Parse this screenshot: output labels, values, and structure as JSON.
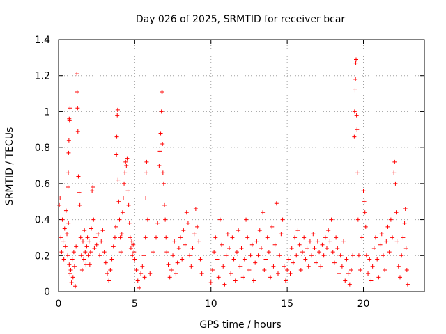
{
  "chart_data": {
    "type": "scatter",
    "title": "Day 026 of 2025, SRMTID for receiver bcar",
    "xlabel": "GPS time / hours",
    "ylabel": "SRMTID / TECUs",
    "xlim": [
      0,
      24
    ],
    "ylim": [
      0,
      1.4
    ],
    "xticks": [
      0,
      5,
      10,
      15,
      20
    ],
    "yticks": [
      0,
      0.2,
      0.4,
      0.6,
      0.8,
      1,
      1.2,
      1.4
    ],
    "xtick_labels": [
      "0",
      "5",
      "10",
      "15",
      "20"
    ],
    "ytick_labels": [
      "0",
      "0.2",
      "0.4",
      "0.6",
      "0.8",
      "1",
      "1.2",
      "1.4"
    ],
    "grid": true,
    "marker": "+",
    "color": "#ff0000",
    "series": [
      {
        "name": "SRMTID",
        "points": [
          [
            0.05,
            0.48
          ],
          [
            0.1,
            0.52
          ],
          [
            0.15,
            0.3
          ],
          [
            0.2,
            0.22
          ],
          [
            0.25,
            0.4
          ],
          [
            0.3,
            0.28
          ],
          [
            0.35,
            0.18
          ],
          [
            0.4,
            0.35
          ],
          [
            0.45,
            0.25
          ],
          [
            0.5,
            0.45
          ],
          [
            0.55,
            0.32
          ],
          [
            0.6,
            0.2
          ],
          [
            0.65,
            0.38
          ],
          [
            0.7,
            0.15
          ],
          [
            0.75,
            0.1
          ],
          [
            0.7,
            0.96
          ],
          [
            0.72,
            0.95
          ],
          [
            0.75,
            1.02
          ],
          [
            0.68,
            0.84
          ],
          [
            0.66,
            0.77
          ],
          [
            0.64,
            0.66
          ],
          [
            0.62,
            0.58
          ],
          [
            0.8,
            0.12
          ],
          [
            0.85,
            0.05
          ],
          [
            0.9,
            0.18
          ],
          [
            0.95,
            0.08
          ],
          [
            1.0,
            0.22
          ],
          [
            1.05,
            0.14
          ],
          [
            1.1,
            0.03
          ],
          [
            1.15,
            0.25
          ],
          [
            1.2,
            1.21
          ],
          [
            1.22,
            1.11
          ],
          [
            1.25,
            1.02
          ],
          [
            1.27,
            0.89
          ],
          [
            1.3,
            0.64
          ],
          [
            1.35,
            0.55
          ],
          [
            1.4,
            0.48
          ],
          [
            1.45,
            0.3
          ],
          [
            1.5,
            0.2
          ],
          [
            1.55,
            0.12
          ],
          [
            1.6,
            0.28
          ],
          [
            1.65,
            0.18
          ],
          [
            1.7,
            0.34
          ],
          [
            1.75,
            0.22
          ],
          [
            1.8,
            0.15
          ],
          [
            1.85,
            0.25
          ],
          [
            1.9,
            0.3
          ],
          [
            1.95,
            0.2
          ],
          [
            2.0,
            0.28
          ],
          [
            2.05,
            0.15
          ],
          [
            2.1,
            0.22
          ],
          [
            2.15,
            0.35
          ],
          [
            2.2,
            0.56
          ],
          [
            2.25,
            0.58
          ],
          [
            2.3,
            0.4
          ],
          [
            2.35,
            0.24
          ],
          [
            2.4,
            0.3
          ],
          [
            2.5,
            0.26
          ],
          [
            2.6,
            0.32
          ],
          [
            2.7,
            0.2
          ],
          [
            2.8,
            0.28
          ],
          [
            2.9,
            0.34
          ],
          [
            3.0,
            0.22
          ],
          [
            3.1,
            0.16
          ],
          [
            3.2,
            0.1
          ],
          [
            3.3,
            0.06
          ],
          [
            3.4,
            0.12
          ],
          [
            3.5,
            0.18
          ],
          [
            3.6,
            0.25
          ],
          [
            3.7,
            0.3
          ],
          [
            3.75,
            0.36
          ],
          [
            3.8,
            0.76
          ],
          [
            3.82,
            0.86
          ],
          [
            3.85,
            0.98
          ],
          [
            3.88,
            1.01
          ],
          [
            3.9,
            0.62
          ],
          [
            3.95,
            0.5
          ],
          [
            4.0,
            0.4
          ],
          [
            4.05,
            0.3
          ],
          [
            4.1,
            0.22
          ],
          [
            4.15,
            0.32
          ],
          [
            4.2,
            0.44
          ],
          [
            4.25,
            0.52
          ],
          [
            4.3,
            0.6
          ],
          [
            4.35,
            0.66
          ],
          [
            4.4,
            0.72
          ],
          [
            4.45,
            0.7
          ],
          [
            4.5,
            0.74
          ],
          [
            4.55,
            0.56
          ],
          [
            4.6,
            0.48
          ],
          [
            4.65,
            0.38
          ],
          [
            4.7,
            0.3
          ],
          [
            4.75,
            0.24
          ],
          [
            4.8,
            0.28
          ],
          [
            4.85,
            0.2
          ],
          [
            4.9,
            0.26
          ],
          [
            4.95,
            0.22
          ],
          [
            5.0,
            0.18
          ],
          [
            5.1,
            0.12
          ],
          [
            5.2,
            0.06
          ],
          [
            5.3,
            0.02
          ],
          [
            5.4,
            0.1
          ],
          [
            5.5,
            0.14
          ],
          [
            5.6,
            0.2
          ],
          [
            5.65,
            0.08
          ],
          [
            5.7,
            0.3
          ],
          [
            5.72,
            0.52
          ],
          [
            5.75,
            0.66
          ],
          [
            5.78,
            0.72
          ],
          [
            5.85,
            0.4
          ],
          [
            6.0,
            0.1
          ],
          [
            6.2,
            0.22
          ],
          [
            6.4,
            0.3
          ],
          [
            6.5,
            0.38
          ],
          [
            6.6,
            0.7
          ],
          [
            6.65,
            0.78
          ],
          [
            6.7,
            0.88
          ],
          [
            6.75,
            1.0
          ],
          [
            6.78,
            1.11
          ],
          [
            6.8,
            1.11
          ],
          [
            6.82,
            0.82
          ],
          [
            6.85,
            0.66
          ],
          [
            6.9,
            0.6
          ],
          [
            6.95,
            0.48
          ],
          [
            7.0,
            0.4
          ],
          [
            7.05,
            0.3
          ],
          [
            7.1,
            0.22
          ],
          [
            7.2,
            0.15
          ],
          [
            7.3,
            0.08
          ],
          [
            7.4,
            0.12
          ],
          [
            7.5,
            0.2
          ],
          [
            7.6,
            0.28
          ],
          [
            7.7,
            0.1
          ],
          [
            7.8,
            0.16
          ],
          [
            7.9,
            0.24
          ],
          [
            8.0,
            0.3
          ],
          [
            8.1,
            0.18
          ],
          [
            8.2,
            0.34
          ],
          [
            8.3,
            0.26
          ],
          [
            8.4,
            0.44
          ],
          [
            8.5,
            0.38
          ],
          [
            8.6,
            0.2
          ],
          [
            8.7,
            0.14
          ],
          [
            8.8,
            0.24
          ],
          [
            8.9,
            0.32
          ],
          [
            9.0,
            0.46
          ],
          [
            9.1,
            0.36
          ],
          [
            9.2,
            0.28
          ],
          [
            9.3,
            0.18
          ],
          [
            9.4,
            0.1
          ],
          [
            10.0,
            0.05
          ],
          [
            10.1,
            0.12
          ],
          [
            10.2,
            0.22
          ],
          [
            10.3,
            0.3
          ],
          [
            10.4,
            0.18
          ],
          [
            10.5,
            0.08
          ],
          [
            10.6,
            0.4
          ],
          [
            10.7,
            0.26
          ],
          [
            10.8,
            0.14
          ],
          [
            10.9,
            0.04
          ],
          [
            11.0,
            0.2
          ],
          [
            11.1,
            0.32
          ],
          [
            11.2,
            0.24
          ],
          [
            11.3,
            0.1
          ],
          [
            11.4,
            0.3
          ],
          [
            11.5,
            0.18
          ],
          [
            11.6,
            0.06
          ],
          [
            11.7,
            0.22
          ],
          [
            11.8,
            0.34
          ],
          [
            11.9,
            0.14
          ],
          [
            12.0,
            0.24
          ],
          [
            12.1,
            0.08
          ],
          [
            12.2,
            0.18
          ],
          [
            12.3,
            0.4
          ],
          [
            12.4,
            0.3
          ],
          [
            12.5,
            0.12
          ],
          [
            12.6,
            0.2
          ],
          [
            12.7,
            0.26
          ],
          [
            12.8,
            0.06
          ],
          [
            12.9,
            0.16
          ],
          [
            13.0,
            0.28
          ],
          [
            13.1,
            0.2
          ],
          [
            13.2,
            0.34
          ],
          [
            13.3,
            0.24
          ],
          [
            13.4,
            0.44
          ],
          [
            13.5,
            0.12
          ],
          [
            13.6,
            0.18
          ],
          [
            13.7,
            0.3
          ],
          [
            13.8,
            0.22
          ],
          [
            13.9,
            0.08
          ],
          [
            14.0,
            0.36
          ],
          [
            14.1,
            0.14
          ],
          [
            14.2,
            0.26
          ],
          [
            14.3,
            0.49
          ],
          [
            14.4,
            0.1
          ],
          [
            14.5,
            0.2
          ],
          [
            14.6,
            0.32
          ],
          [
            14.7,
            0.4
          ],
          [
            14.8,
            0.14
          ],
          [
            14.9,
            0.06
          ],
          [
            15.0,
            0.12
          ],
          [
            15.1,
            0.18
          ],
          [
            15.2,
            0.1
          ],
          [
            15.3,
            0.24
          ],
          [
            15.4,
            0.16
          ],
          [
            15.5,
            0.3
          ],
          [
            15.6,
            0.2
          ],
          [
            15.7,
            0.34
          ],
          [
            15.8,
            0.26
          ],
          [
            15.9,
            0.12
          ],
          [
            16.0,
            0.22
          ],
          [
            16.1,
            0.3
          ],
          [
            16.2,
            0.18
          ],
          [
            16.3,
            0.24
          ],
          [
            16.4,
            0.14
          ],
          [
            16.5,
            0.28
          ],
          [
            16.6,
            0.2
          ],
          [
            16.7,
            0.32
          ],
          [
            16.8,
            0.24
          ],
          [
            16.9,
            0.16
          ],
          [
            17.0,
            0.28
          ],
          [
            17.1,
            0.22
          ],
          [
            17.2,
            0.14
          ],
          [
            17.3,
            0.26
          ],
          [
            17.4,
            0.2
          ],
          [
            17.5,
            0.3
          ],
          [
            17.6,
            0.24
          ],
          [
            17.7,
            0.34
          ],
          [
            17.8,
            0.28
          ],
          [
            17.9,
            0.4
          ],
          [
            18.0,
            0.22
          ],
          [
            18.1,
            0.16
          ],
          [
            18.2,
            0.3
          ],
          [
            18.3,
            0.24
          ],
          [
            18.4,
            0.1
          ],
          [
            18.5,
            0.2
          ],
          [
            18.6,
            0.14
          ],
          [
            18.7,
            0.28
          ],
          [
            18.8,
            0.06
          ],
          [
            18.9,
            0.18
          ],
          [
            19.0,
            0.1
          ],
          [
            19.1,
            0.04
          ],
          [
            19.2,
            0.12
          ],
          [
            19.3,
            0.2
          ],
          [
            19.4,
            0.86
          ],
          [
            19.42,
            1.0
          ],
          [
            19.45,
            1.12
          ],
          [
            19.48,
            1.18
          ],
          [
            19.5,
            1.27
          ],
          [
            19.52,
            1.29
          ],
          [
            19.55,
            0.98
          ],
          [
            19.58,
            0.9
          ],
          [
            19.6,
            0.66
          ],
          [
            19.65,
            0.4
          ],
          [
            19.7,
            0.2
          ],
          [
            19.8,
            0.12
          ],
          [
            19.9,
            0.3
          ],
          [
            20.0,
            0.56
          ],
          [
            20.05,
            0.5
          ],
          [
            20.1,
            0.44
          ],
          [
            20.15,
            0.36
          ],
          [
            20.2,
            0.2
          ],
          [
            20.3,
            0.1
          ],
          [
            20.4,
            0.18
          ],
          [
            20.5,
            0.06
          ],
          [
            20.6,
            0.14
          ],
          [
            20.7,
            0.24
          ],
          [
            20.8,
            0.3
          ],
          [
            20.9,
            0.18
          ],
          [
            21.0,
            0.08
          ],
          [
            21.1,
            0.26
          ],
          [
            21.2,
            0.32
          ],
          [
            21.3,
            0.2
          ],
          [
            21.4,
            0.12
          ],
          [
            21.5,
            0.28
          ],
          [
            21.6,
            0.36
          ],
          [
            21.7,
            0.22
          ],
          [
            21.8,
            0.4
          ],
          [
            21.9,
            0.3
          ],
          [
            22.0,
            0.66
          ],
          [
            22.05,
            0.72
          ],
          [
            22.1,
            0.6
          ],
          [
            22.15,
            0.44
          ],
          [
            22.2,
            0.28
          ],
          [
            22.3,
            0.14
          ],
          [
            22.4,
            0.08
          ],
          [
            22.5,
            0.2
          ],
          [
            22.6,
            0.3
          ],
          [
            22.7,
            0.38
          ],
          [
            22.75,
            0.46
          ],
          [
            22.8,
            0.24
          ],
          [
            22.85,
            0.12
          ],
          [
            22.9,
            0.04
          ]
        ]
      }
    ]
  }
}
